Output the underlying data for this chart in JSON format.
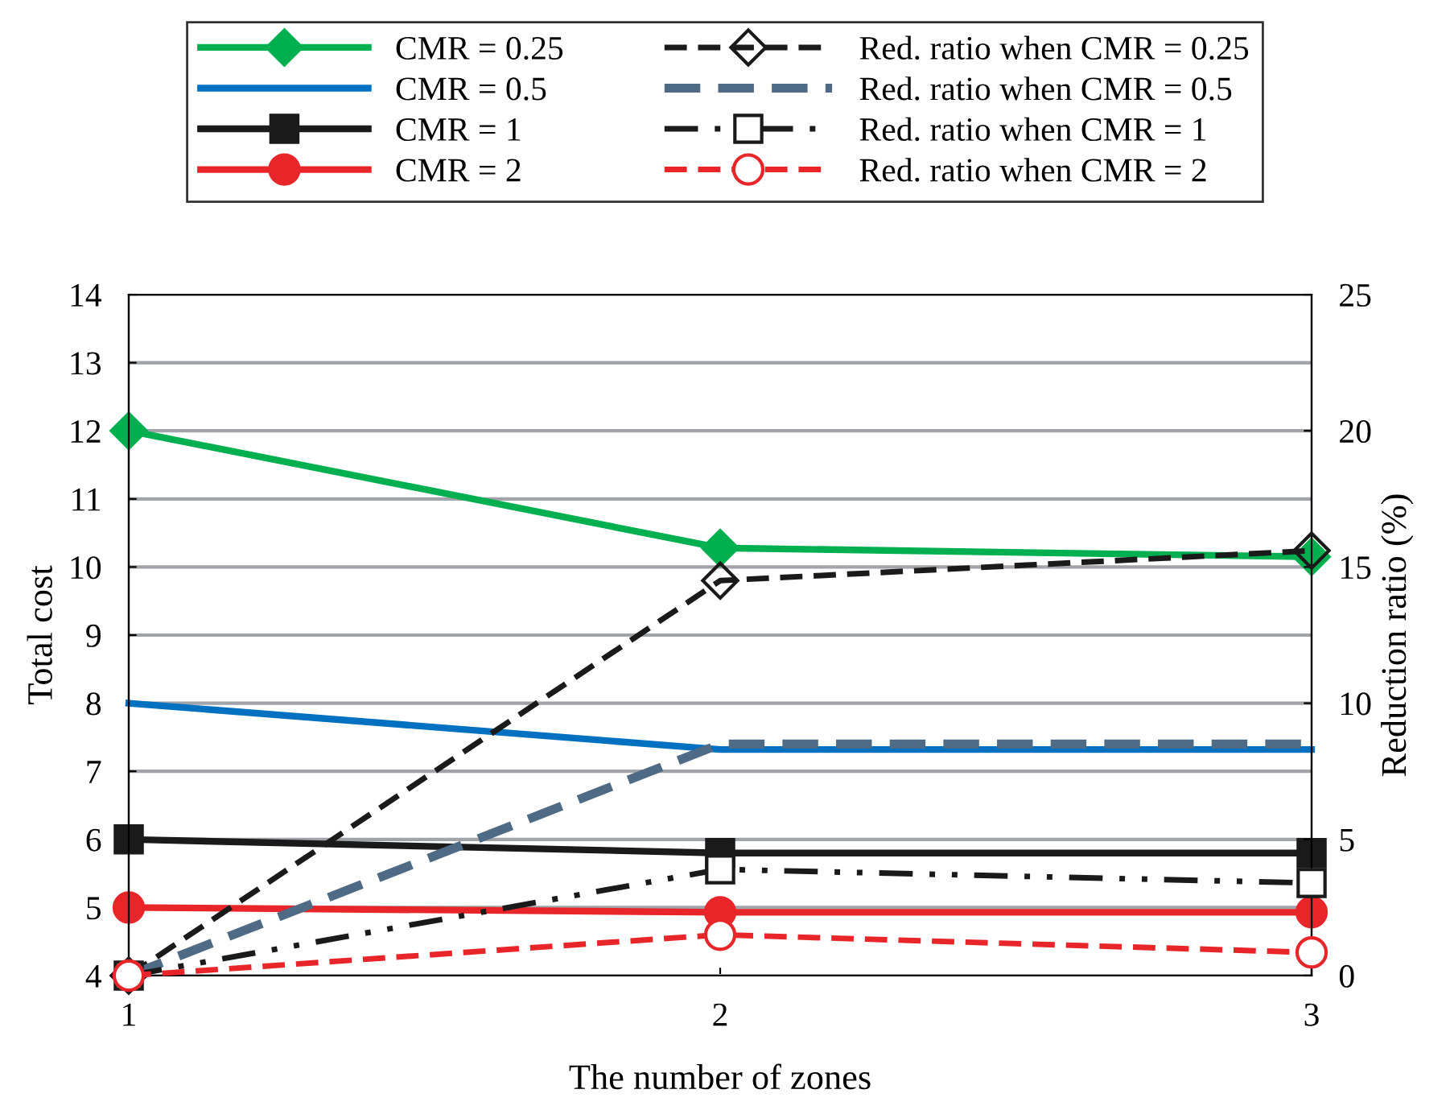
{
  "chart_data": {
    "type": "line",
    "xlabel": "The number of zones",
    "ylabel": "Total cost",
    "y2label": "Reduction ratio (%)",
    "x": [
      1,
      2,
      3
    ],
    "xlim": [
      1,
      3
    ],
    "xticks": [
      1,
      2,
      3
    ],
    "ylim": [
      4,
      14
    ],
    "yticks": [
      4,
      5,
      6,
      7,
      8,
      9,
      10,
      11,
      12,
      13,
      14
    ],
    "y2lim": [
      0,
      25
    ],
    "y2ticks": [
      0,
      5,
      10,
      15,
      20,
      25
    ],
    "grid": "y",
    "legend": "top",
    "series": [
      {
        "name": "CMR = 0.25",
        "color": "#00b050",
        "marker": "diamond",
        "line_style": "solid",
        "values": [
          12,
          10.28,
          10.15
        ]
      },
      {
        "name": "CMR = 0.5",
        "color": "#0070c0",
        "marker": "none",
        "line_style": "solid",
        "values": [
          8,
          7.32,
          7.32
        ]
      },
      {
        "name": "CMR = 1",
        "color": "#1a1a1a",
        "marker": "square",
        "line_style": "solid",
        "values": [
          6,
          5.8,
          5.8
        ]
      },
      {
        "name": "CMR = 2",
        "color": "#e8262a",
        "marker": "circle",
        "line_style": "solid",
        "values": [
          5,
          4.93,
          4.93
        ]
      },
      {
        "name": "Red. ratio when CMR = 0.25",
        "color": "#1a1a1a",
        "marker": "diamond",
        "line_style": "dashed",
        "axis": "y2",
        "values": [
          0,
          14.5,
          15.6
        ]
      },
      {
        "name": "Red. ratio when CMR = 0.5",
        "color": "#4e6a85",
        "marker": "none",
        "line_style": "dashed",
        "axis": "y2",
        "values": [
          0,
          8.5,
          8.5
        ]
      },
      {
        "name": "Red. ratio when CMR = 1",
        "color": "#1a1a1a",
        "marker": "square",
        "line_style": "dashdotdot",
        "axis": "y2",
        "values": [
          0,
          3.9,
          3.4
        ]
      },
      {
        "name": "Red. ratio when CMR = 2",
        "color": "#e8262a",
        "marker": "circle",
        "line_style": "dashed",
        "axis": "y2",
        "values": [
          0,
          1.5,
          0.85
        ]
      }
    ]
  }
}
